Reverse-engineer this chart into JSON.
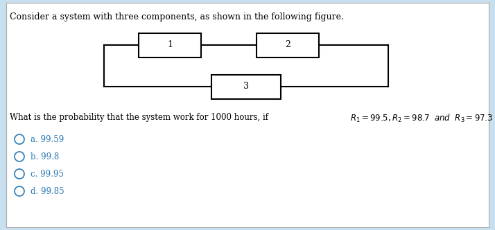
{
  "bg_outer": "#c8dff0",
  "bg_inner": "#ffffff",
  "title_text": "Consider a system with three components, as shown in the following figure.",
  "q_prefix": "What is the probability that the system work for 1000 hours, if ",
  "q_math": "$R_1 = 99.5, R_2 = 98.7$  $\\mathit{and}$  $R_3 = 97.3$",
  "options": [
    "a. 99.59",
    "b. 99.8",
    "c. 99.95",
    "d. 99.85"
  ],
  "box1_label": "1",
  "box2_label": "2",
  "box3_label": "3",
  "text_color": "#000000",
  "option_color": "#2a7ab5",
  "box_color": "#000000",
  "line_color": "#000000",
  "fig_w": 7.14,
  "fig_h": 3.32,
  "dpi": 100
}
